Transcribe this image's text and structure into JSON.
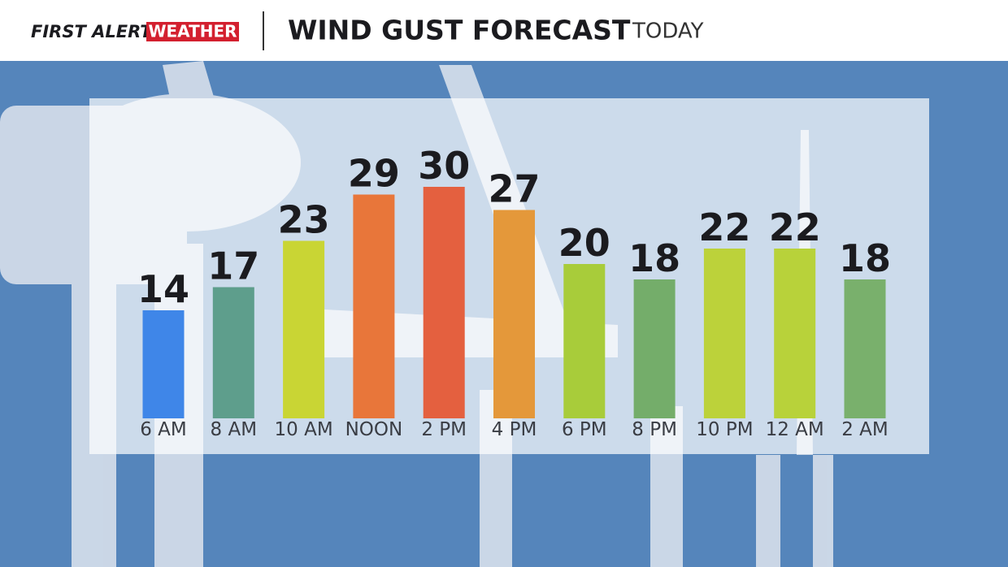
{
  "brand": {
    "text": "FIRST ALERT",
    "highlight": "WEATHER"
  },
  "chart_data": {
    "type": "bar",
    "title": "WIND GUST FORECAST",
    "subtitle": "TODAY",
    "categories": [
      "6 AM",
      "8 AM",
      "10 AM",
      "NOON",
      "2 PM",
      "4 PM",
      "6 PM",
      "8 PM",
      "10 PM",
      "12 AM",
      "2 AM"
    ],
    "values": [
      14,
      17,
      23,
      29,
      30,
      27,
      20,
      18,
      22,
      22,
      18
    ],
    "colors": [
      "#3f86e8",
      "#5e9e8c",
      "#c9d534",
      "#e8763a",
      "#e4603f",
      "#e4983a",
      "#a8cc3a",
      "#74ad6a",
      "#bcd23a",
      "#b8d23a",
      "#79b06c"
    ]
  }
}
